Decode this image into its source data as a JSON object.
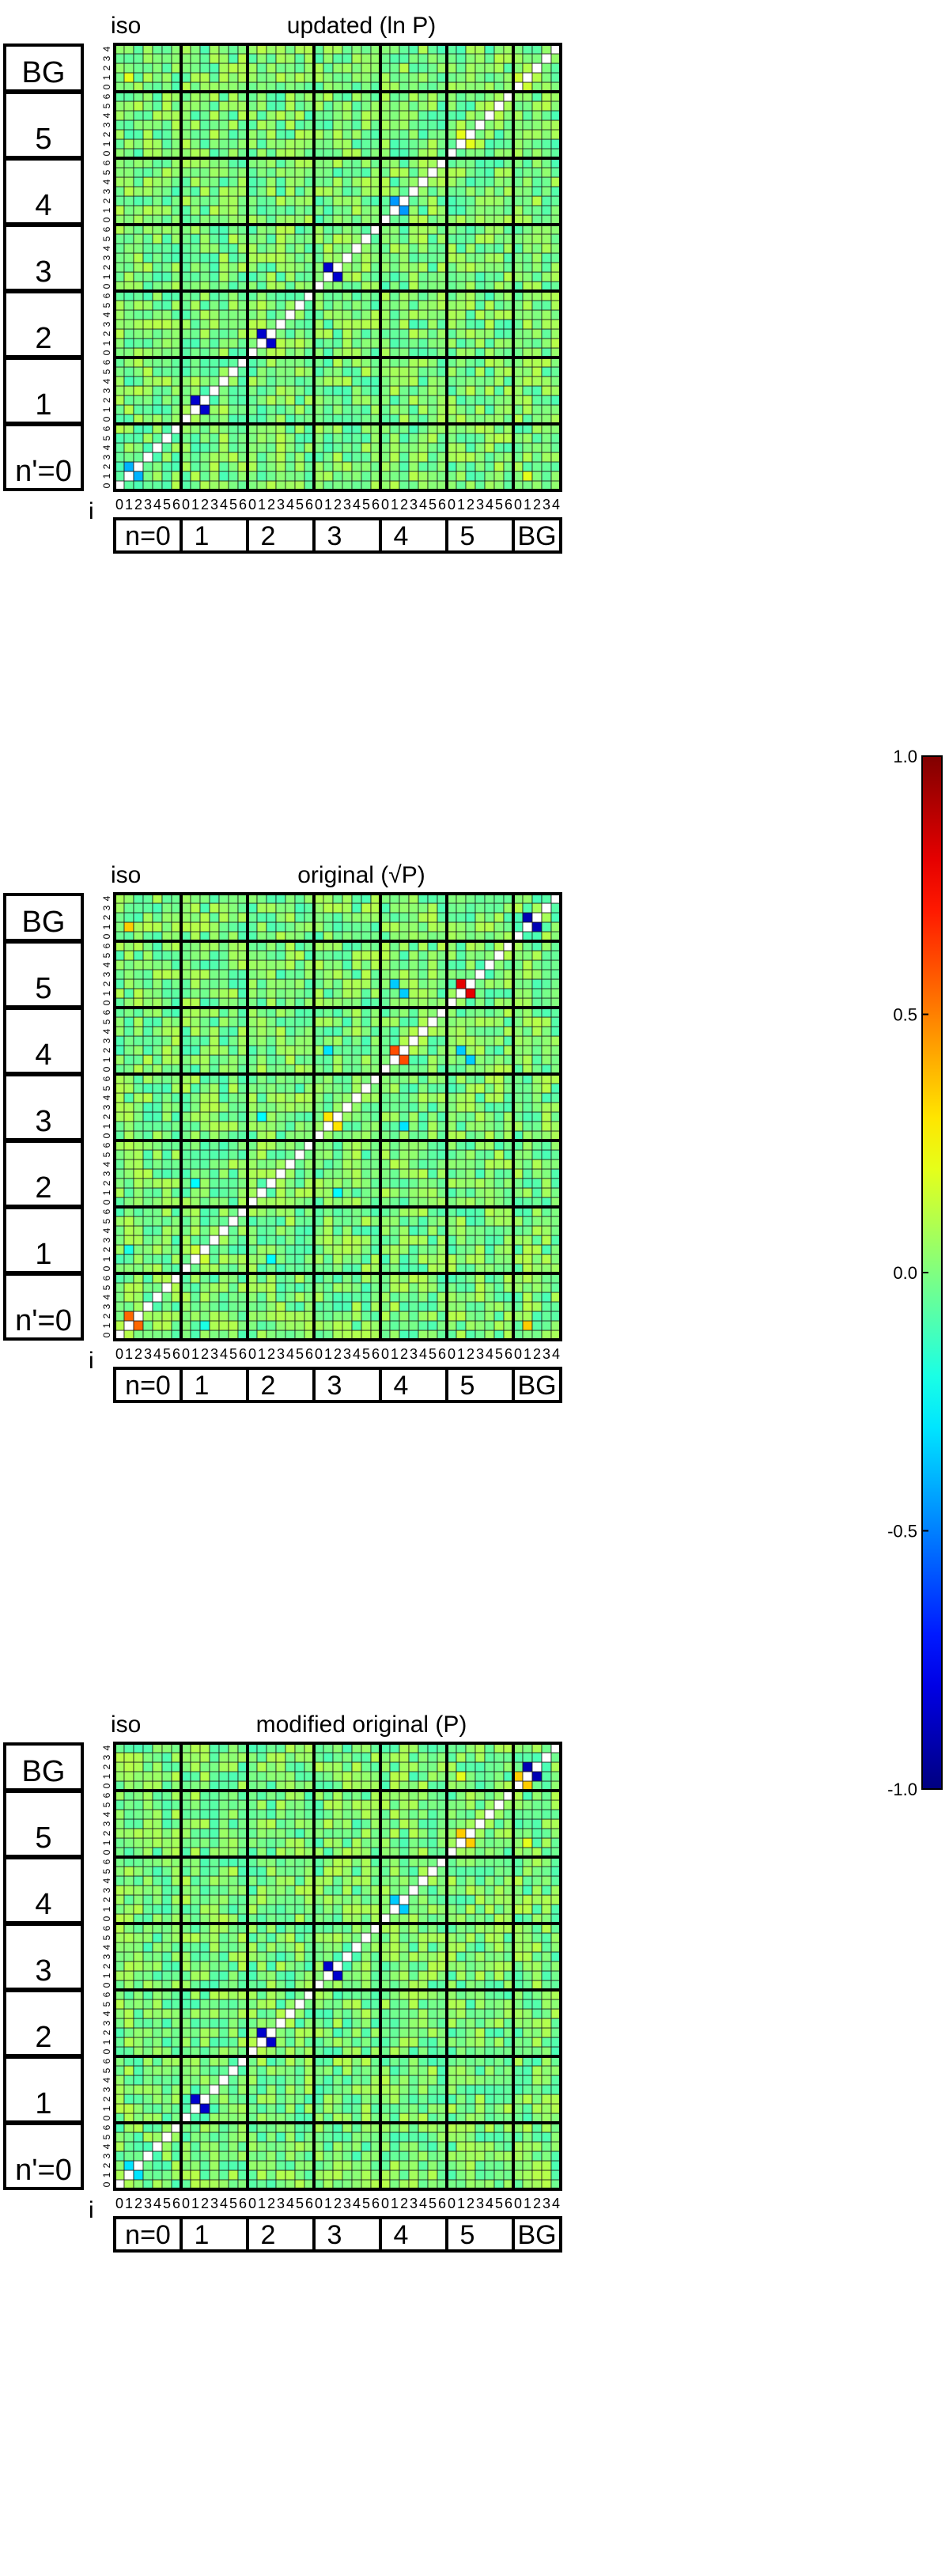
{
  "chart_data": [
    {
      "type": "heatmap",
      "title": "updated (ln P)",
      "corner_label": "iso",
      "index_label": "i",
      "group_labels_x": [
        "n=0",
        "1",
        "2",
        "3",
        "4",
        "5",
        "BG"
      ],
      "group_labels_y": [
        "n'=0",
        "1",
        "2",
        "3",
        "4",
        "5",
        "BG"
      ],
      "group_sizes": [
        7,
        7,
        7,
        7,
        7,
        7,
        5
      ],
      "ticks_x": [
        "0",
        "1",
        "2",
        "3",
        "4",
        "5",
        "6",
        "0",
        "1",
        "2",
        "3",
        "4",
        "5",
        "6",
        "0",
        "1",
        "2",
        "3",
        "4",
        "5",
        "6",
        "0",
        "1",
        "2",
        "3",
        "4",
        "5",
        "6",
        "0",
        "1",
        "2",
        "3",
        "4",
        "5",
        "6",
        "0",
        "1",
        "2",
        "3",
        "4",
        "5",
        "6",
        "0",
        "1",
        "2",
        "3",
        "4"
      ],
      "diagonal": "white",
      "highlights": [
        {
          "i": 8,
          "j": 9,
          "value": -0.85
        },
        {
          "i": 9,
          "j": 8,
          "value": -0.85
        },
        {
          "i": 15,
          "j": 16,
          "value": -0.85
        },
        {
          "i": 16,
          "j": 15,
          "value": -0.85
        },
        {
          "i": 22,
          "j": 23,
          "value": -0.85
        },
        {
          "i": 23,
          "j": 22,
          "value": -0.85
        },
        {
          "i": 29,
          "j": 30,
          "value": -0.45
        },
        {
          "i": 30,
          "j": 29,
          "value": -0.45
        },
        {
          "i": 36,
          "j": 37,
          "value": 0.2
        },
        {
          "i": 37,
          "j": 36,
          "value": 0.2
        },
        {
          "i": 42,
          "j": 43,
          "value": 0.15
        },
        {
          "i": 43,
          "j": 42,
          "value": 0.15
        },
        {
          "i": 1,
          "j": 2,
          "value": -0.4
        },
        {
          "i": 2,
          "j": 1,
          "value": -0.4
        },
        {
          "i": 43,
          "j": 1,
          "value": 0.2
        },
        {
          "i": 1,
          "j": 43,
          "value": 0.2
        }
      ]
    },
    {
      "type": "heatmap",
      "title": "original (√P)",
      "corner_label": "iso",
      "index_label": "i",
      "group_labels_x": [
        "n=0",
        "1",
        "2",
        "3",
        "4",
        "5",
        "BG"
      ],
      "group_labels_y": [
        "n'=0",
        "1",
        "2",
        "3",
        "4",
        "5",
        "BG"
      ],
      "group_sizes": [
        7,
        7,
        7,
        7,
        7,
        7,
        5
      ],
      "ticks_x": [
        "0",
        "1",
        "2",
        "3",
        "4",
        "5",
        "6",
        "0",
        "1",
        "2",
        "3",
        "4",
        "5",
        "6",
        "0",
        "1",
        "2",
        "3",
        "4",
        "5",
        "6",
        "0",
        "1",
        "2",
        "3",
        "4",
        "5",
        "6",
        "0",
        "1",
        "2",
        "3",
        "4",
        "5",
        "6",
        "0",
        "1",
        "2",
        "3",
        "4",
        "5",
        "6",
        "0",
        "1",
        "2",
        "3",
        "4"
      ],
      "diagonal": "white",
      "highlights": [
        {
          "i": 1,
          "j": 2,
          "value": 0.55
        },
        {
          "i": 2,
          "j": 1,
          "value": 0.55
        },
        {
          "i": 8,
          "j": 9,
          "value": 0.15
        },
        {
          "i": 9,
          "j": 8,
          "value": 0.15
        },
        {
          "i": 29,
          "j": 30,
          "value": 0.6
        },
        {
          "i": 30,
          "j": 29,
          "value": 0.6
        },
        {
          "i": 36,
          "j": 37,
          "value": 0.8
        },
        {
          "i": 37,
          "j": 36,
          "value": 0.8
        },
        {
          "i": 43,
          "j": 44,
          "value": -0.9
        },
        {
          "i": 44,
          "j": 43,
          "value": -0.9
        },
        {
          "i": 22,
          "j": 23,
          "value": 0.3
        },
        {
          "i": 23,
          "j": 22,
          "value": 0.3
        },
        {
          "i": 29,
          "j": 37,
          "value": -0.35
        },
        {
          "i": 37,
          "j": 29,
          "value": -0.35
        },
        {
          "i": 30,
          "j": 36,
          "value": -0.35
        },
        {
          "i": 36,
          "j": 30,
          "value": -0.35
        },
        {
          "i": 22,
          "j": 30,
          "value": -0.3
        },
        {
          "i": 30,
          "j": 22,
          "value": -0.3
        },
        {
          "i": 15,
          "j": 23,
          "value": -0.25
        },
        {
          "i": 23,
          "j": 15,
          "value": -0.25
        },
        {
          "i": 8,
          "j": 16,
          "value": -0.25
        },
        {
          "i": 16,
          "j": 8,
          "value": -0.25
        },
        {
          "i": 1,
          "j": 9,
          "value": -0.2
        },
        {
          "i": 9,
          "j": 1,
          "value": -0.2
        },
        {
          "i": 1,
          "j": 43,
          "value": 0.35
        },
        {
          "i": 43,
          "j": 1,
          "value": 0.35
        }
      ]
    },
    {
      "type": "heatmap",
      "title": "modified original (P)",
      "corner_label": "iso",
      "index_label": "i",
      "group_labels_x": [
        "n=0",
        "1",
        "2",
        "3",
        "4",
        "5",
        "BG"
      ],
      "group_labels_y": [
        "n'=0",
        "1",
        "2",
        "3",
        "4",
        "5",
        "BG"
      ],
      "group_sizes": [
        7,
        7,
        7,
        7,
        7,
        7,
        5
      ],
      "ticks_x": [
        "0",
        "1",
        "2",
        "3",
        "4",
        "5",
        "6",
        "0",
        "1",
        "2",
        "3",
        "4",
        "5",
        "6",
        "0",
        "1",
        "2",
        "3",
        "4",
        "5",
        "6",
        "0",
        "1",
        "2",
        "3",
        "4",
        "5",
        "6",
        "0",
        "1",
        "2",
        "3",
        "4",
        "5",
        "6",
        "0",
        "1",
        "2",
        "3",
        "4",
        "5",
        "6",
        "0",
        "1",
        "2",
        "3",
        "4"
      ],
      "diagonal": "white",
      "highlights": [
        {
          "i": 8,
          "j": 9,
          "value": -0.85
        },
        {
          "i": 9,
          "j": 8,
          "value": -0.85
        },
        {
          "i": 15,
          "j": 16,
          "value": -0.85
        },
        {
          "i": 16,
          "j": 15,
          "value": -0.85
        },
        {
          "i": 22,
          "j": 23,
          "value": -0.85
        },
        {
          "i": 23,
          "j": 22,
          "value": -0.85
        },
        {
          "i": 29,
          "j": 30,
          "value": -0.35
        },
        {
          "i": 30,
          "j": 29,
          "value": -0.35
        },
        {
          "i": 36,
          "j": 37,
          "value": 0.35
        },
        {
          "i": 37,
          "j": 36,
          "value": 0.35
        },
        {
          "i": 43,
          "j": 44,
          "value": -0.9
        },
        {
          "i": 44,
          "j": 43,
          "value": -0.9
        },
        {
          "i": 42,
          "j": 43,
          "value": 0.35
        },
        {
          "i": 43,
          "j": 42,
          "value": 0.35
        },
        {
          "i": 1,
          "j": 2,
          "value": -0.3
        },
        {
          "i": 2,
          "j": 1,
          "value": -0.3
        },
        {
          "i": 36,
          "j": 43,
          "value": 0.2
        },
        {
          "i": 43,
          "j": 36,
          "value": 0.2
        }
      ]
    }
  ],
  "colorbar": {
    "colormap": "jet",
    "range": [
      -1.0,
      1.0
    ],
    "tick_values": [
      1.0,
      0.5,
      0.0,
      -0.5,
      -1.0
    ],
    "tick_labels": [
      "1.0",
      "0.5",
      "0.0",
      "-0.5",
      "-1.0"
    ]
  }
}
